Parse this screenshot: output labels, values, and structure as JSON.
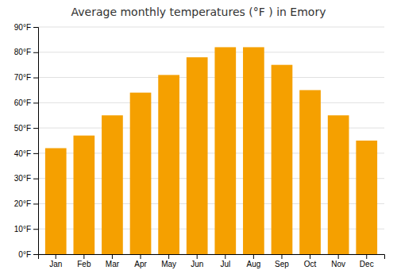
{
  "chart_data": {
    "type": "bar",
    "title": "Average monthly temperatures (°F ) in Emory",
    "categories": [
      "Jan",
      "Feb",
      "Mar",
      "Apr",
      "May",
      "Jun",
      "Jul",
      "Aug",
      "Sep",
      "Oct",
      "Nov",
      "Dec"
    ],
    "values": [
      42,
      47,
      55,
      64,
      71,
      78,
      82,
      82,
      75,
      65,
      55,
      45
    ],
    "color": "#F5A000",
    "ylim": [
      0,
      90
    ],
    "yticks": [
      {
        "value": 0,
        "label": "0°F"
      },
      {
        "value": 10,
        "label": "10°F"
      },
      {
        "value": 20,
        "label": "20°F"
      },
      {
        "value": 30,
        "label": "30°F"
      },
      {
        "value": 40,
        "label": "40°F"
      },
      {
        "value": 50,
        "label": "50°F"
      },
      {
        "value": 60,
        "label": "60°F"
      },
      {
        "value": 70,
        "label": "70°F"
      },
      {
        "value": 80,
        "label": "80°F"
      },
      {
        "value": 90,
        "label": "90°F"
      }
    ],
    "grid": true
  }
}
